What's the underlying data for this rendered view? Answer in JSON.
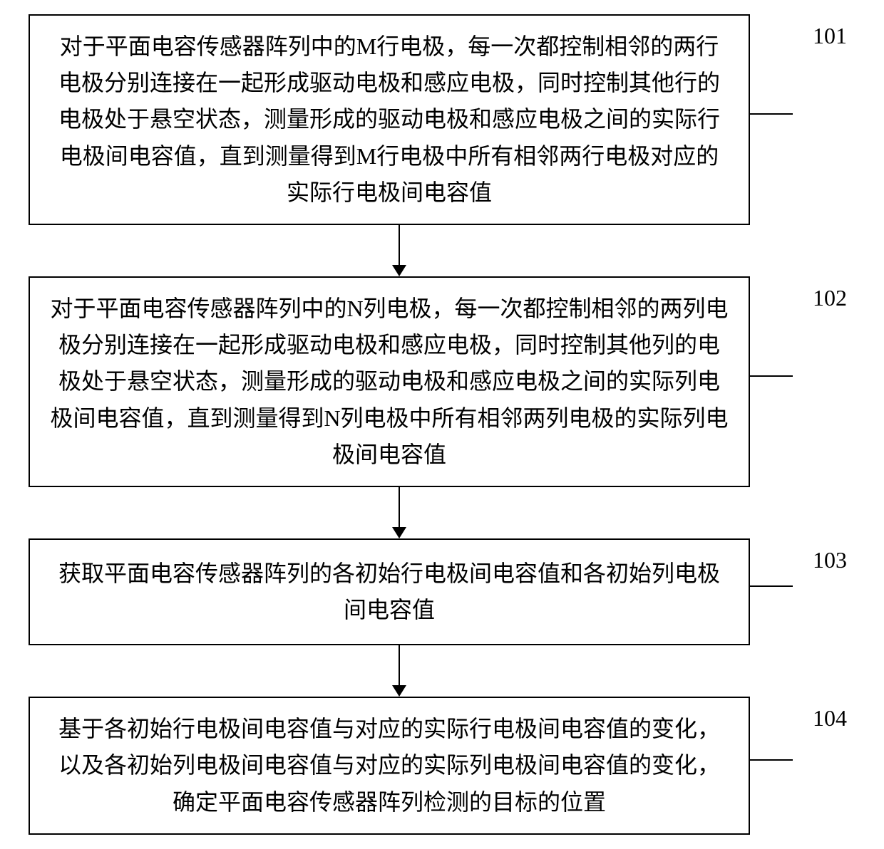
{
  "flowchart": {
    "type": "flowchart",
    "direction": "vertical",
    "background_color": "#ffffff",
    "border_color": "#000000",
    "border_width": 2,
    "text_color": "#000000",
    "fontsize": 32,
    "font_family": "SimSun",
    "box_padding": 18,
    "arrow_color": "#000000",
    "arrow_height": 72,
    "steps": [
      {
        "id": "101",
        "label": "101",
        "text": "对于平面电容传感器阵列中的M行电极，每一次都控制相邻的两行电极分别连接在一起形成驱动电极和感应电极，同时控制其他行的电极处于悬空状态，测量形成的驱动电极和感应电极之间的实际行电极间电容值，直到测量得到M行电极中所有相邻两行电极对应的实际行电极间电容值",
        "lines": 5
      },
      {
        "id": "102",
        "label": "102",
        "text": "对于平面电容传感器阵列中的N列电极，每一次都控制相邻的两列电极分别连接在一起形成驱动电极和感应电极，同时控制其他列的电极处于悬空状态，测量形成的驱动电极和感应电极之间的实际列电极间电容值，直到测量得到N列电极中所有相邻两列电极的实际列电极间电容值",
        "lines": 5
      },
      {
        "id": "103",
        "label": "103",
        "text": "获取平面电容传感器阵列的各初始行电极间电容值和各初始列电极间电容值",
        "lines": 2
      },
      {
        "id": "104",
        "label": "104",
        "text": "基于各初始行电极间电容值与对应的实际行电极间电容值的变化，以及各初始列电极间电容值与对应的实际列电极间电容值的变化，确定平面电容传感器阵列检测的目标的位置",
        "lines": 3
      }
    ]
  }
}
